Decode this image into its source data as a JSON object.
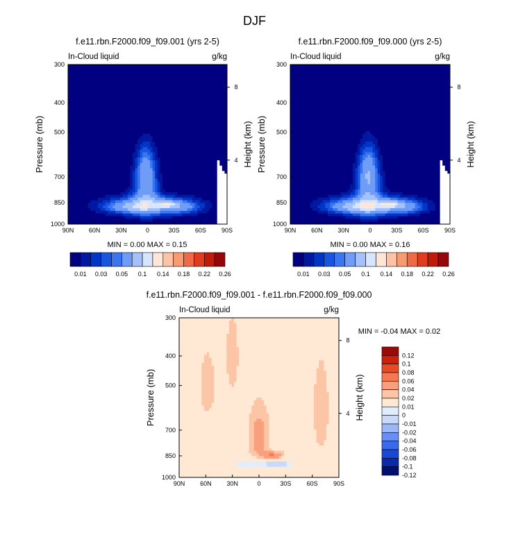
{
  "title": "DJF",
  "colors": {
    "levels_abs": [
      "#000080",
      "#0019a0",
      "#0035c6",
      "#1a55e0",
      "#3c75f0",
      "#6e9cf6",
      "#a4c1fb",
      "#d6e6ff",
      "#ffe6d6",
      "#fcc4a4",
      "#f89a72",
      "#f26a45",
      "#e03d20",
      "#c01b0a",
      "#96050a"
    ],
    "levels_diff": [
      "#001070",
      "#0a2aa8",
      "#1a48d6",
      "#3a6ae8",
      "#6890f2",
      "#9cb7f8",
      "#c8dafc",
      "#dfeeff",
      "#ffe8d4",
      "#fcc6a6",
      "#f8a07e",
      "#f47852",
      "#ea4a22",
      "#cc200c",
      "#9a0a08"
    ]
  },
  "chart_data": [
    {
      "type": "heatmap",
      "title": "f.e11.rbn.F2000.f09_f09.001 (yrs 2-5)",
      "variable": "In-Cloud liquid",
      "units": "g/kg",
      "ylabel": "Pressure (mb)",
      "ylabel_right": "Height (km)",
      "x_ticks": [
        "90N",
        "60N",
        "30N",
        "0",
        "30S",
        "60S",
        "90S"
      ],
      "y_ticks": [
        "300",
        "400",
        "500",
        "700",
        "850",
        "1000"
      ],
      "y_right_ticks": [
        "8",
        "4"
      ],
      "stats": {
        "min": "0.00",
        "max": "0.15",
        "text": "MIN =   0.00  MAX =   0.15"
      },
      "colorbar_labels": [
        "0.01",
        "0.03",
        "0.05",
        "0.1",
        "0.14",
        "0.18",
        "0.22",
        "0.26"
      ]
    },
    {
      "type": "heatmap",
      "title": "f.e11.rbn.F2000.f09_f09.000 (yrs 2-5)",
      "variable": "In-Cloud liquid",
      "units": "g/kg",
      "ylabel": "Pressure (mb)",
      "ylabel_right": "Height (km)",
      "x_ticks": [
        "90N",
        "60N",
        "30N",
        "0",
        "30S",
        "60S",
        "90S"
      ],
      "y_ticks": [
        "300",
        "400",
        "500",
        "700",
        "850",
        "1000"
      ],
      "y_right_ticks": [
        "8",
        "4"
      ],
      "stats": {
        "min": "0.00",
        "max": "0.16",
        "text": "MIN =   0.00  MAX =   0.16"
      },
      "colorbar_labels": [
        "0.01",
        "0.03",
        "0.05",
        "0.1",
        "0.14",
        "0.18",
        "0.22",
        "0.26"
      ]
    },
    {
      "type": "heatmap",
      "title": "f.e11.rbn.F2000.f09_f09.001 - f.e11.rbn.F2000.f09_f09.000",
      "variable": "In-Cloud liquid",
      "units": "g/kg",
      "ylabel": "Pressure (mb)",
      "ylabel_right": "Height (km)",
      "x_ticks": [
        "90N",
        "60N",
        "30N",
        "0",
        "30S",
        "60S",
        "90S"
      ],
      "y_ticks": [
        "300",
        "400",
        "500",
        "700",
        "850",
        "1000"
      ],
      "y_right_ticks": [
        "8",
        "4"
      ],
      "stats": {
        "min": "-0.04",
        "max": "0.02",
        "text": "MIN =  -0.04  MAX =   0.02"
      },
      "colorbar_labels": [
        "0.12",
        "0.1",
        "0.08",
        "0.06",
        "0.04",
        "0.02",
        "0.01",
        "0",
        "-0.01",
        "-0.02",
        "-0.04",
        "-0.06",
        "-0.08",
        "-0.1",
        "-0.12"
      ]
    }
  ]
}
